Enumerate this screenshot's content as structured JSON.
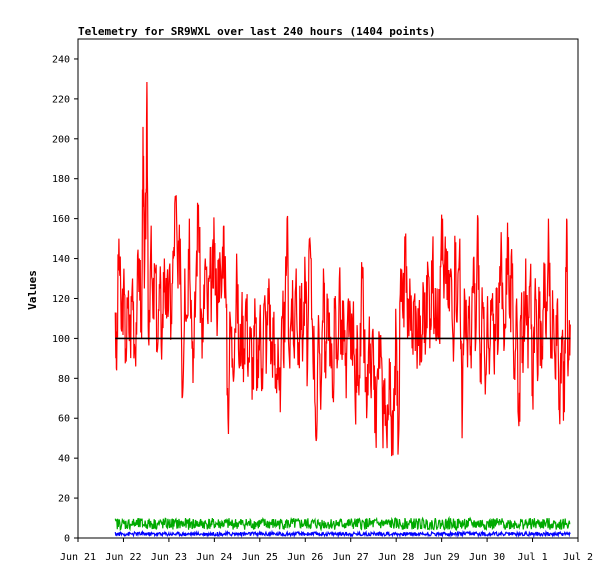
{
  "chart_data": {
    "type": "line",
    "title": "Telemetry for SR9WXL over last 240 hours (1404 points)",
    "xlabel": "",
    "ylabel": "Values",
    "x_ticks": [
      "Jun 21",
      "Jun 22",
      "Jun 23",
      "Jun 24",
      "Jun 25",
      "Jun 26",
      "Jun 27",
      "Jun 28",
      "Jun 29",
      "Jun 30",
      "Jul 1",
      "Jul 2"
    ],
    "xlim_days": [
      0,
      11
    ],
    "ylim": [
      0,
      250
    ],
    "y_ticks": [
      0,
      20,
      40,
      60,
      80,
      100,
      120,
      140,
      160,
      180,
      200,
      220,
      240
    ],
    "grid": false,
    "legend": "none",
    "series": [
      {
        "color": "#ff0000",
        "x_start": 0.82,
        "x_end": 10.83,
        "description_points": [
          [
            0.82,
            113
          ],
          [
            0.85,
            84
          ],
          [
            0.9,
            150
          ],
          [
            0.95,
            105
          ],
          [
            1.0,
            125
          ],
          [
            1.05,
            95
          ],
          [
            1.1,
            115
          ],
          [
            1.15,
            100
          ],
          [
            1.2,
            130
          ],
          [
            1.25,
            95
          ],
          [
            1.3,
            120
          ],
          [
            1.35,
            140
          ],
          [
            1.4,
            100
          ],
          [
            1.43,
            206
          ],
          [
            1.46,
            125
          ],
          [
            1.5,
            175
          ],
          [
            1.52,
            219
          ],
          [
            1.55,
            100
          ],
          [
            1.6,
            145
          ],
          [
            1.65,
            110
          ],
          [
            1.7,
            135
          ],
          [
            1.75,
            95
          ],
          [
            1.8,
            125
          ],
          [
            1.85,
            100
          ],
          [
            1.9,
            140
          ],
          [
            1.95,
            110
          ],
          [
            2.0,
            128
          ],
          [
            2.05,
            110
          ],
          [
            2.1,
            140
          ],
          [
            2.15,
            170
          ],
          [
            2.2,
            125
          ],
          [
            2.25,
            150
          ],
          [
            2.3,
            71
          ],
          [
            2.35,
            135
          ],
          [
            2.4,
            110
          ],
          [
            2.45,
            160
          ],
          [
            2.5,
            108
          ],
          [
            2.55,
            90
          ],
          [
            2.6,
            135
          ],
          [
            2.65,
            167
          ],
          [
            2.7,
            115
          ],
          [
            2.75,
            98
          ],
          [
            2.8,
            140
          ],
          [
            2.85,
            110
          ],
          [
            2.9,
            130
          ],
          [
            2.95,
            125
          ],
          [
            3.0,
            145
          ],
          [
            3.05,
            115
          ],
          [
            3.1,
            140
          ],
          [
            3.15,
            120
          ],
          [
            3.2,
            156
          ],
          [
            3.25,
            125
          ],
          [
            3.3,
            60
          ],
          [
            3.35,
            110
          ],
          [
            3.4,
            90
          ],
          [
            3.45,
            105
          ],
          [
            3.5,
            130
          ],
          [
            3.55,
            85
          ],
          [
            3.6,
            110
          ],
          [
            3.65,
            95
          ],
          [
            3.7,
            120
          ],
          [
            3.75,
            90
          ],
          [
            3.8,
            100
          ],
          [
            3.85,
            80
          ],
          [
            3.9,
            110
          ],
          [
            3.95,
            75
          ],
          [
            4.0,
            110
          ],
          [
            4.05,
            85
          ],
          [
            4.1,
            118
          ],
          [
            4.15,
            95
          ],
          [
            4.2,
            130
          ],
          [
            4.25,
            90
          ],
          [
            4.3,
            105
          ],
          [
            4.35,
            75
          ],
          [
            4.4,
            100
          ],
          [
            4.45,
            63
          ],
          [
            4.5,
            110
          ],
          [
            4.55,
            98
          ],
          [
            4.6,
            160
          ],
          [
            4.65,
            90
          ],
          [
            4.7,
            120
          ],
          [
            4.75,
            95
          ],
          [
            4.8,
            135
          ],
          [
            4.85,
            90
          ],
          [
            4.9,
            120
          ],
          [
            4.95,
            100
          ],
          [
            5.0,
            130
          ],
          [
            5.05,
            85
          ],
          [
            5.1,
            150
          ],
          [
            5.15,
            110
          ],
          [
            5.2,
            90
          ],
          [
            5.25,
            50
          ],
          [
            5.3,
            105
          ],
          [
            5.35,
            75
          ],
          [
            5.4,
            135
          ],
          [
            5.45,
            80
          ],
          [
            5.5,
            120
          ],
          [
            5.55,
            100
          ],
          [
            5.6,
            70
          ],
          [
            5.65,
            115
          ],
          [
            5.7,
            85
          ],
          [
            5.75,
            130
          ],
          [
            5.8,
            95
          ],
          [
            5.85,
            110
          ],
          [
            5.9,
            70
          ],
          [
            5.95,
            120
          ],
          [
            6.0,
            90
          ],
          [
            6.05,
            110
          ],
          [
            6.1,
            65
          ],
          [
            6.15,
            100
          ],
          [
            6.2,
            80
          ],
          [
            6.25,
            130
          ],
          [
            6.3,
            95
          ],
          [
            6.35,
            60
          ],
          [
            6.4,
            100
          ],
          [
            6.45,
            70
          ],
          [
            6.5,
            95
          ],
          [
            6.55,
            55
          ],
          [
            6.6,
            85
          ],
          [
            6.65,
            100
          ],
          [
            6.7,
            60
          ],
          [
            6.75,
            80
          ],
          [
            6.8,
            45
          ],
          [
            6.85,
            90
          ],
          [
            6.9,
            41
          ],
          [
            6.95,
            75
          ],
          [
            7.0,
            100
          ],
          [
            7.05,
            48
          ],
          [
            7.1,
            135
          ],
          [
            7.15,
            110
          ],
          [
            7.2,
            145
          ],
          [
            7.25,
            100
          ],
          [
            7.3,
            130
          ],
          [
            7.35,
            95
          ],
          [
            7.4,
            120
          ],
          [
            7.45,
            100
          ],
          [
            7.5,
            110
          ],
          [
            7.55,
            88
          ],
          [
            7.6,
            125
          ],
          [
            7.65,
            100
          ],
          [
            7.7,
            135
          ],
          [
            7.75,
            110
          ],
          [
            7.8,
            140
          ],
          [
            7.85,
            105
          ],
          [
            7.9,
            125
          ],
          [
            7.95,
            100
          ],
          [
            8.0,
            162
          ],
          [
            8.05,
            120
          ],
          [
            8.1,
            145
          ],
          [
            8.15,
            115
          ],
          [
            8.2,
            135
          ],
          [
            8.25,
            100
          ],
          [
            8.3,
            140
          ],
          [
            8.35,
            118
          ],
          [
            8.4,
            150
          ],
          [
            8.45,
            50
          ],
          [
            8.5,
            125
          ],
          [
            8.55,
            100
          ],
          [
            8.6,
            110
          ],
          [
            8.65,
            85
          ],
          [
            8.7,
            140
          ],
          [
            8.75,
            98
          ],
          [
            8.8,
            160
          ],
          [
            8.85,
            78
          ],
          [
            8.9,
            115
          ],
          [
            8.95,
            85
          ],
          [
            9.0,
            110
          ],
          [
            9.05,
            82
          ],
          [
            9.1,
            120
          ],
          [
            9.15,
            90
          ],
          [
            9.2,
            125
          ],
          [
            9.25,
            100
          ],
          [
            9.3,
            140
          ],
          [
            9.35,
            115
          ],
          [
            9.4,
            105
          ],
          [
            9.45,
            158
          ],
          [
            9.5,
            110
          ],
          [
            9.55,
            130
          ],
          [
            9.6,
            85
          ],
          [
            9.65,
            120
          ],
          [
            9.7,
            56
          ],
          [
            9.75,
            110
          ],
          [
            9.8,
            95
          ],
          [
            9.85,
            140
          ],
          [
            9.9,
            85
          ],
          [
            9.95,
            130
          ],
          [
            10.0,
            75
          ],
          [
            10.05,
            120
          ],
          [
            10.1,
            90
          ],
          [
            10.15,
            110
          ],
          [
            10.2,
            85
          ],
          [
            10.25,
            138
          ],
          [
            10.3,
            100
          ],
          [
            10.35,
            160
          ],
          [
            10.4,
            90
          ],
          [
            10.45,
            110
          ],
          [
            10.5,
            80
          ],
          [
            10.55,
            120
          ],
          [
            10.6,
            57
          ],
          [
            10.65,
            100
          ],
          [
            10.7,
            63
          ],
          [
            10.75,
            160
          ],
          [
            10.78,
            81
          ],
          [
            10.83,
            107
          ]
        ]
      },
      {
        "color": "#000000",
        "constant": 100,
        "x_start": 0.82,
        "x_end": 10.83
      },
      {
        "color": "#00aa00",
        "x_start": 0.82,
        "x_end": 10.83,
        "band": [
          1,
          10
        ]
      },
      {
        "color": "#0000ff",
        "x_start": 0.82,
        "x_end": 10.83,
        "band": [
          0,
          3
        ]
      }
    ]
  }
}
